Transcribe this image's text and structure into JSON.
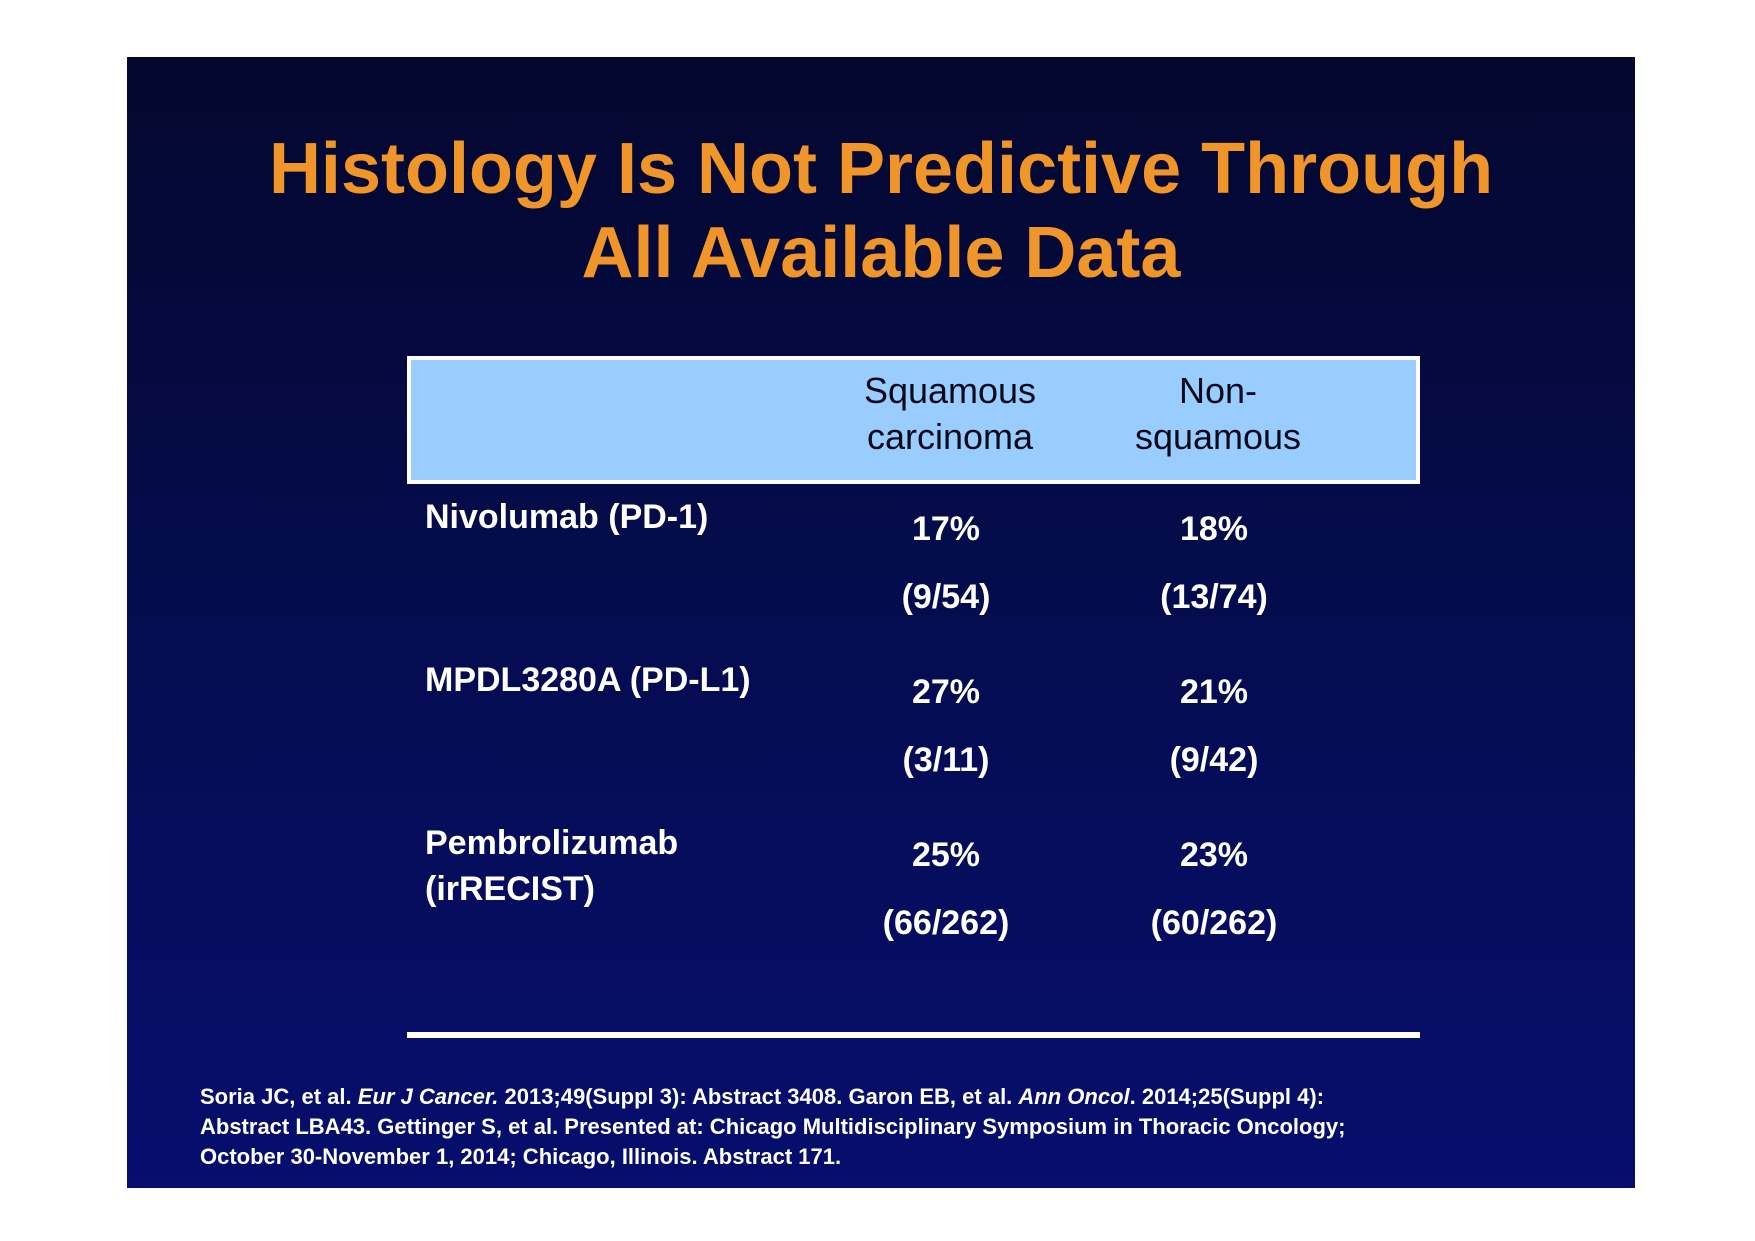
{
  "title": {
    "line1": "Histology Is Not Predictive Through",
    "line2": "All Available Data"
  },
  "table": {
    "header": {
      "col1_line1": "Squamous",
      "col1_line2": "carcinoma",
      "col2_line1": "Non-",
      "col2_line2": "squamous"
    },
    "rows": [
      {
        "label_line1": "Nivolumab (PD-1)",
        "label_line2": "",
        "squamous_pct": "17%",
        "squamous_frac": "(9/54)",
        "nonsquamous_pct": "18%",
        "nonsquamous_frac": "(13/74)"
      },
      {
        "label_line1": "MPDL3280A (PD-L1)",
        "label_line2": "",
        "squamous_pct": "27%",
        "squamous_frac": "(3/11)",
        "nonsquamous_pct": "21%",
        "nonsquamous_frac": "(9/42)"
      },
      {
        "label_line1": "Pembrolizumab",
        "label_line2": "(irRECIST)",
        "squamous_pct": "25%",
        "squamous_frac": "(66/262)",
        "nonsquamous_pct": "23%",
        "nonsquamous_frac": "(60/262)"
      }
    ]
  },
  "footnote": {
    "l1_a": "Soria JC, et al. ",
    "l1_b": "Eur J Cancer.",
    "l1_c": " 2013;49(Suppl 3): Abstract 3408. Garon EB, et al. ",
    "l1_d": "Ann Oncol",
    "l1_e": ". 2014;25(Suppl 4):",
    "l2": "Abstract LBA43. Gettinger S, et al. Presented at: Chicago Multidisciplinary Symposium in Thoracic Oncology;",
    "l3": "October 30-November 1, 2014; Chicago, Illinois. Abstract 171."
  },
  "colors": {
    "title": "#f0952a",
    "header_bg": "#99ccff",
    "slide_bg_top": "#04072e",
    "slide_bg_bottom": "#060e6e",
    "text": "#ffffff"
  }
}
